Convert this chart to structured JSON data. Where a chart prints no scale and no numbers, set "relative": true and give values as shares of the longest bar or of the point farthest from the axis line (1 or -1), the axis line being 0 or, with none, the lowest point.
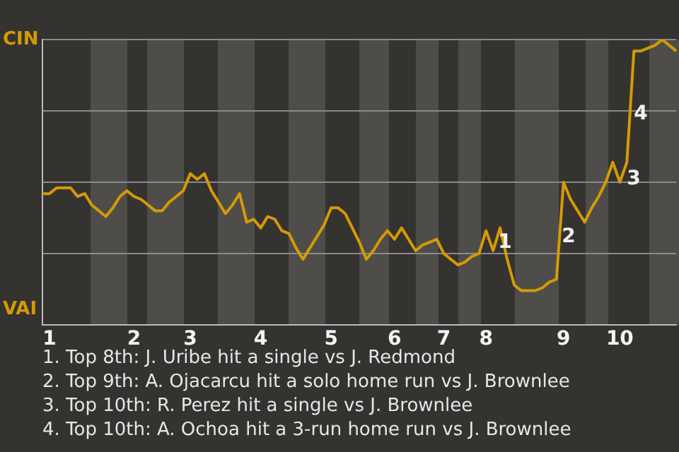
{
  "chart_data": {
    "type": "line",
    "relative": true,
    "categories": [
      null,
      "1",
      null,
      null,
      null,
      null,
      null,
      null,
      null,
      null,
      null,
      null,
      null,
      "2",
      null,
      null,
      null,
      null,
      null,
      null,
      null,
      "3",
      null,
      null,
      null,
      null,
      null,
      null,
      null,
      null,
      null,
      "4",
      null,
      null,
      null,
      null,
      null,
      null,
      null,
      null,
      null,
      "5",
      null,
      null,
      null,
      null,
      null,
      null,
      null,
      null,
      "6",
      null,
      null,
      null,
      null,
      null,
      null,
      "7",
      null,
      null,
      null,
      null,
      null,
      "8",
      null,
      null,
      null,
      null,
      null,
      null,
      null,
      null,
      null,
      null,
      "9",
      null,
      null,
      null,
      null,
      null,
      null,
      null,
      "10",
      null,
      null,
      null,
      null,
      null,
      null,
      null,
      null
    ],
    "series": [
      {
        "color": "#d49a06",
        "values": [
          0.46,
          0.46,
          0.48,
          0.48,
          0.48,
          0.45,
          0.46,
          0.42,
          0.4,
          0.38,
          0.41,
          0.45,
          0.47,
          0.45,
          0.44,
          0.42,
          0.4,
          0.4,
          0.43,
          0.45,
          0.47,
          0.53,
          0.51,
          0.53,
          0.47,
          0.43,
          0.39,
          0.42,
          0.46,
          0.36,
          0.37,
          0.34,
          0.38,
          0.37,
          0.33,
          0.32,
          0.27,
          0.23,
          0.27,
          0.31,
          0.35,
          0.41,
          0.41,
          0.39,
          0.34,
          0.29,
          0.23,
          0.26,
          0.3,
          0.33,
          0.3,
          0.34,
          0.3,
          0.26,
          0.28,
          0.29,
          0.3,
          0.25,
          0.23,
          0.21,
          0.22,
          0.24,
          0.25,
          0.33,
          0.26,
          0.34,
          0.23,
          0.14,
          0.12,
          0.12,
          0.12,
          0.13,
          0.15,
          0.16,
          0.5,
          0.44,
          0.4,
          0.36,
          0.41,
          0.45,
          0.5,
          0.57,
          0.5,
          0.57,
          0.96,
          0.96,
          0.97,
          0.98,
          1.0,
          0.98,
          0.96
        ]
      }
    ],
    "grid": "y",
    "marker": "none",
    "annotations": [
      "CIN",
      "VAI",
      "1",
      "2",
      "3",
      "4",
      "1. Top 8th: J. Uribe hit a single vs J. Redmond",
      "2. Top 9th: A. Ojacarcu hit a solo home run vs J. Brownlee",
      "3. Top 10th: R. Perez hit a single vs J. Brownlee",
      "4. Top 10th: A. Ochoa hit a 3-run home run vs J. Brownlee"
    ]
  }
}
